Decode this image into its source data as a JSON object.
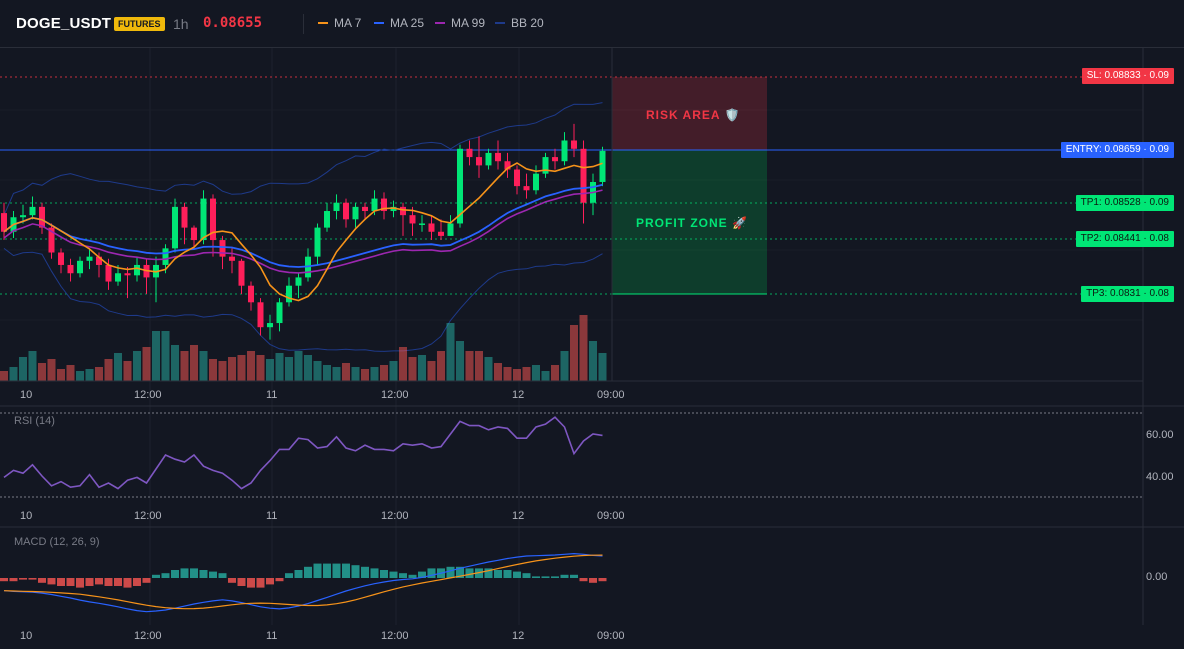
{
  "header": {
    "symbol": "DOGE_USDT",
    "badge": "FUTURES",
    "timeframe": "1h",
    "price": "0.08655",
    "legend": [
      {
        "name": "MA 7",
        "color": "#f7931a"
      },
      {
        "name": "MA 25",
        "color": "#2962ff"
      },
      {
        "name": "MA 99",
        "color": "#9c27b0"
      },
      {
        "name": "BB 20",
        "color": "#1e3a8a"
      }
    ]
  },
  "zones": {
    "risk": "RISK AREA 🛡️",
    "profit": "PROFIT ZONE 🚀"
  },
  "price_levels": [
    {
      "text": "SL: 0.08833 · 0.09",
      "color": "#f23645"
    },
    {
      "text": "ENTRY: 0.08659 · 0.09",
      "color": "#2962ff"
    },
    {
      "text": "TP1: 0.08528 · 0.09",
      "color": "#00e676"
    },
    {
      "text": "TP2: 0.08441 · 0.08",
      "color": "#00e676"
    },
    {
      "text": "TP3: 0.0831 · 0.08",
      "color": "#00e676"
    }
  ],
  "time_axis": [
    "10",
    "12:00",
    "11",
    "12:00",
    "12",
    "09:00"
  ],
  "rsi": {
    "label": "RSI (14)",
    "ticks": [
      "60.00",
      "40.00"
    ],
    "values": [
      44,
      49,
      47,
      53,
      45,
      38,
      41,
      37,
      38,
      46,
      37,
      40,
      36,
      42,
      44,
      40,
      50,
      60,
      57,
      55,
      60,
      52,
      49,
      47,
      42,
      36,
      40,
      49,
      56,
      64,
      64,
      72,
      71,
      65,
      66,
      73,
      65,
      63,
      67,
      64,
      64,
      63,
      68,
      67,
      68,
      65,
      66,
      75,
      84,
      81,
      81,
      78,
      80,
      79,
      72,
      72,
      80,
      82,
      87,
      80,
      61,
      70,
      75,
      74
    ]
  },
  "macd": {
    "label": "MACD (12, 26, 9)",
    "ticks": [
      "0.00"
    ],
    "hist": [
      -2,
      -2,
      -1,
      -1,
      -3,
      -4,
      -5,
      -5,
      -6,
      -5,
      -4,
      -5,
      -5,
      -6,
      -5,
      -3,
      2,
      3,
      5,
      6,
      6,
      5,
      4,
      3,
      -3,
      -5,
      -6,
      -6,
      -4,
      -2,
      3,
      5,
      7,
      9,
      9,
      9,
      9,
      8,
      7,
      6,
      5,
      4,
      3,
      2,
      4,
      6,
      6,
      7,
      7,
      6,
      6,
      6,
      5,
      5,
      4,
      3,
      1,
      1,
      1,
      2,
      2,
      -2,
      -3,
      -2
    ]
  },
  "chart_data": {
    "type": "candlestick",
    "time_labels": [
      "10",
      "12:00",
      "11",
      "12:00",
      "12",
      "09:00"
    ],
    "levels": {
      "sl": 0.08833,
      "entry": 0.08659,
      "tp1": 0.08528,
      "tp2": 0.08441,
      "tp3": 0.0831
    },
    "candles": [
      [
        0.08505,
        0.0846,
        0.0853,
        0.0844
      ],
      [
        0.0846,
        0.08495,
        0.0851,
        0.08445
      ],
      [
        0.08495,
        0.085,
        0.08525,
        0.0848
      ],
      [
        0.085,
        0.0852,
        0.08545,
        0.0849
      ],
      [
        0.0852,
        0.0847,
        0.0853,
        0.08455
      ],
      [
        0.0847,
        0.0841,
        0.0848,
        0.08395
      ],
      [
        0.0841,
        0.0838,
        0.0842,
        0.0836
      ],
      [
        0.0838,
        0.0836,
        0.08395,
        0.0834
      ],
      [
        0.0836,
        0.0839,
        0.084,
        0.0835
      ],
      [
        0.0839,
        0.084,
        0.0842,
        0.0837
      ],
      [
        0.084,
        0.0838,
        0.0841,
        0.0835
      ],
      [
        0.0838,
        0.0834,
        0.08395,
        0.0832
      ],
      [
        0.0834,
        0.0836,
        0.0838,
        0.0833
      ],
      [
        0.0836,
        0.08355,
        0.08375,
        0.083
      ],
      [
        0.08355,
        0.0838,
        0.084,
        0.0834
      ],
      [
        0.0838,
        0.0835,
        0.08395,
        0.0831
      ],
      [
        0.0835,
        0.0838,
        0.084,
        0.0829
      ],
      [
        0.0838,
        0.0842,
        0.0843,
        0.0836
      ],
      [
        0.0842,
        0.0852,
        0.0854,
        0.0841
      ],
      [
        0.0852,
        0.0847,
        0.0853,
        0.0843
      ],
      [
        0.0847,
        0.0844,
        0.08475,
        0.0842
      ],
      [
        0.0844,
        0.0854,
        0.0856,
        0.0843
      ],
      [
        0.0854,
        0.0844,
        0.0855,
        0.084
      ],
      [
        0.0844,
        0.084,
        0.0845,
        0.0837
      ],
      [
        0.084,
        0.0839,
        0.0842,
        0.0836
      ],
      [
        0.0839,
        0.0833,
        0.08395,
        0.0831
      ],
      [
        0.0833,
        0.0829,
        0.0834,
        0.0827
      ],
      [
        0.0829,
        0.0823,
        0.083,
        0.0821
      ],
      [
        0.0823,
        0.0824,
        0.0826,
        0.082
      ],
      [
        0.0824,
        0.0829,
        0.083,
        0.0822
      ],
      [
        0.0829,
        0.0833,
        0.0835,
        0.0828
      ],
      [
        0.0833,
        0.0835,
        0.0836,
        0.083
      ],
      [
        0.0835,
        0.084,
        0.0842,
        0.0834
      ],
      [
        0.084,
        0.0847,
        0.0848,
        0.0838
      ],
      [
        0.0847,
        0.0851,
        0.0853,
        0.0846
      ],
      [
        0.0851,
        0.0853,
        0.0855,
        0.0849
      ],
      [
        0.0853,
        0.0849,
        0.0854,
        0.0847
      ],
      [
        0.0849,
        0.0852,
        0.0853,
        0.0847
      ],
      [
        0.0852,
        0.0851,
        0.0853,
        0.0849
      ],
      [
        0.0851,
        0.0854,
        0.0856,
        0.085
      ],
      [
        0.0854,
        0.0851,
        0.08555,
        0.0849
      ],
      [
        0.0851,
        0.0852,
        0.08535,
        0.08495
      ],
      [
        0.0852,
        0.085,
        0.0853,
        0.0845
      ],
      [
        0.085,
        0.0848,
        0.0852,
        0.0845
      ],
      [
        0.0848,
        0.0848,
        0.085,
        0.0846
      ],
      [
        0.0848,
        0.0846,
        0.085,
        0.0844
      ],
      [
        0.0846,
        0.0845,
        0.0849,
        0.0844
      ],
      [
        0.0845,
        0.0848,
        0.085,
        0.0845
      ],
      [
        0.0848,
        0.0866,
        0.0867,
        0.0847
      ],
      [
        0.0866,
        0.0864,
        0.0868,
        0.0862
      ],
      [
        0.0864,
        0.0862,
        0.0869,
        0.0859
      ],
      [
        0.0862,
        0.0865,
        0.0866,
        0.0861
      ],
      [
        0.0865,
        0.0863,
        0.0868,
        0.0861
      ],
      [
        0.0863,
        0.0861,
        0.0865,
        0.0859
      ],
      [
        0.0861,
        0.0857,
        0.0862,
        0.0855
      ],
      [
        0.0857,
        0.0856,
        0.086,
        0.0854
      ],
      [
        0.0856,
        0.086,
        0.0862,
        0.0855
      ],
      [
        0.086,
        0.0864,
        0.0865,
        0.0859
      ],
      [
        0.0864,
        0.0863,
        0.0866,
        0.0861
      ],
      [
        0.0863,
        0.0868,
        0.087,
        0.0862
      ],
      [
        0.0868,
        0.0866,
        0.0872,
        0.0864
      ],
      [
        0.0866,
        0.0853,
        0.0868,
        0.0848
      ],
      [
        0.0853,
        0.0858,
        0.086,
        0.085
      ],
      [
        0.0858,
        0.08655,
        0.08665,
        0.0857
      ]
    ]
  }
}
